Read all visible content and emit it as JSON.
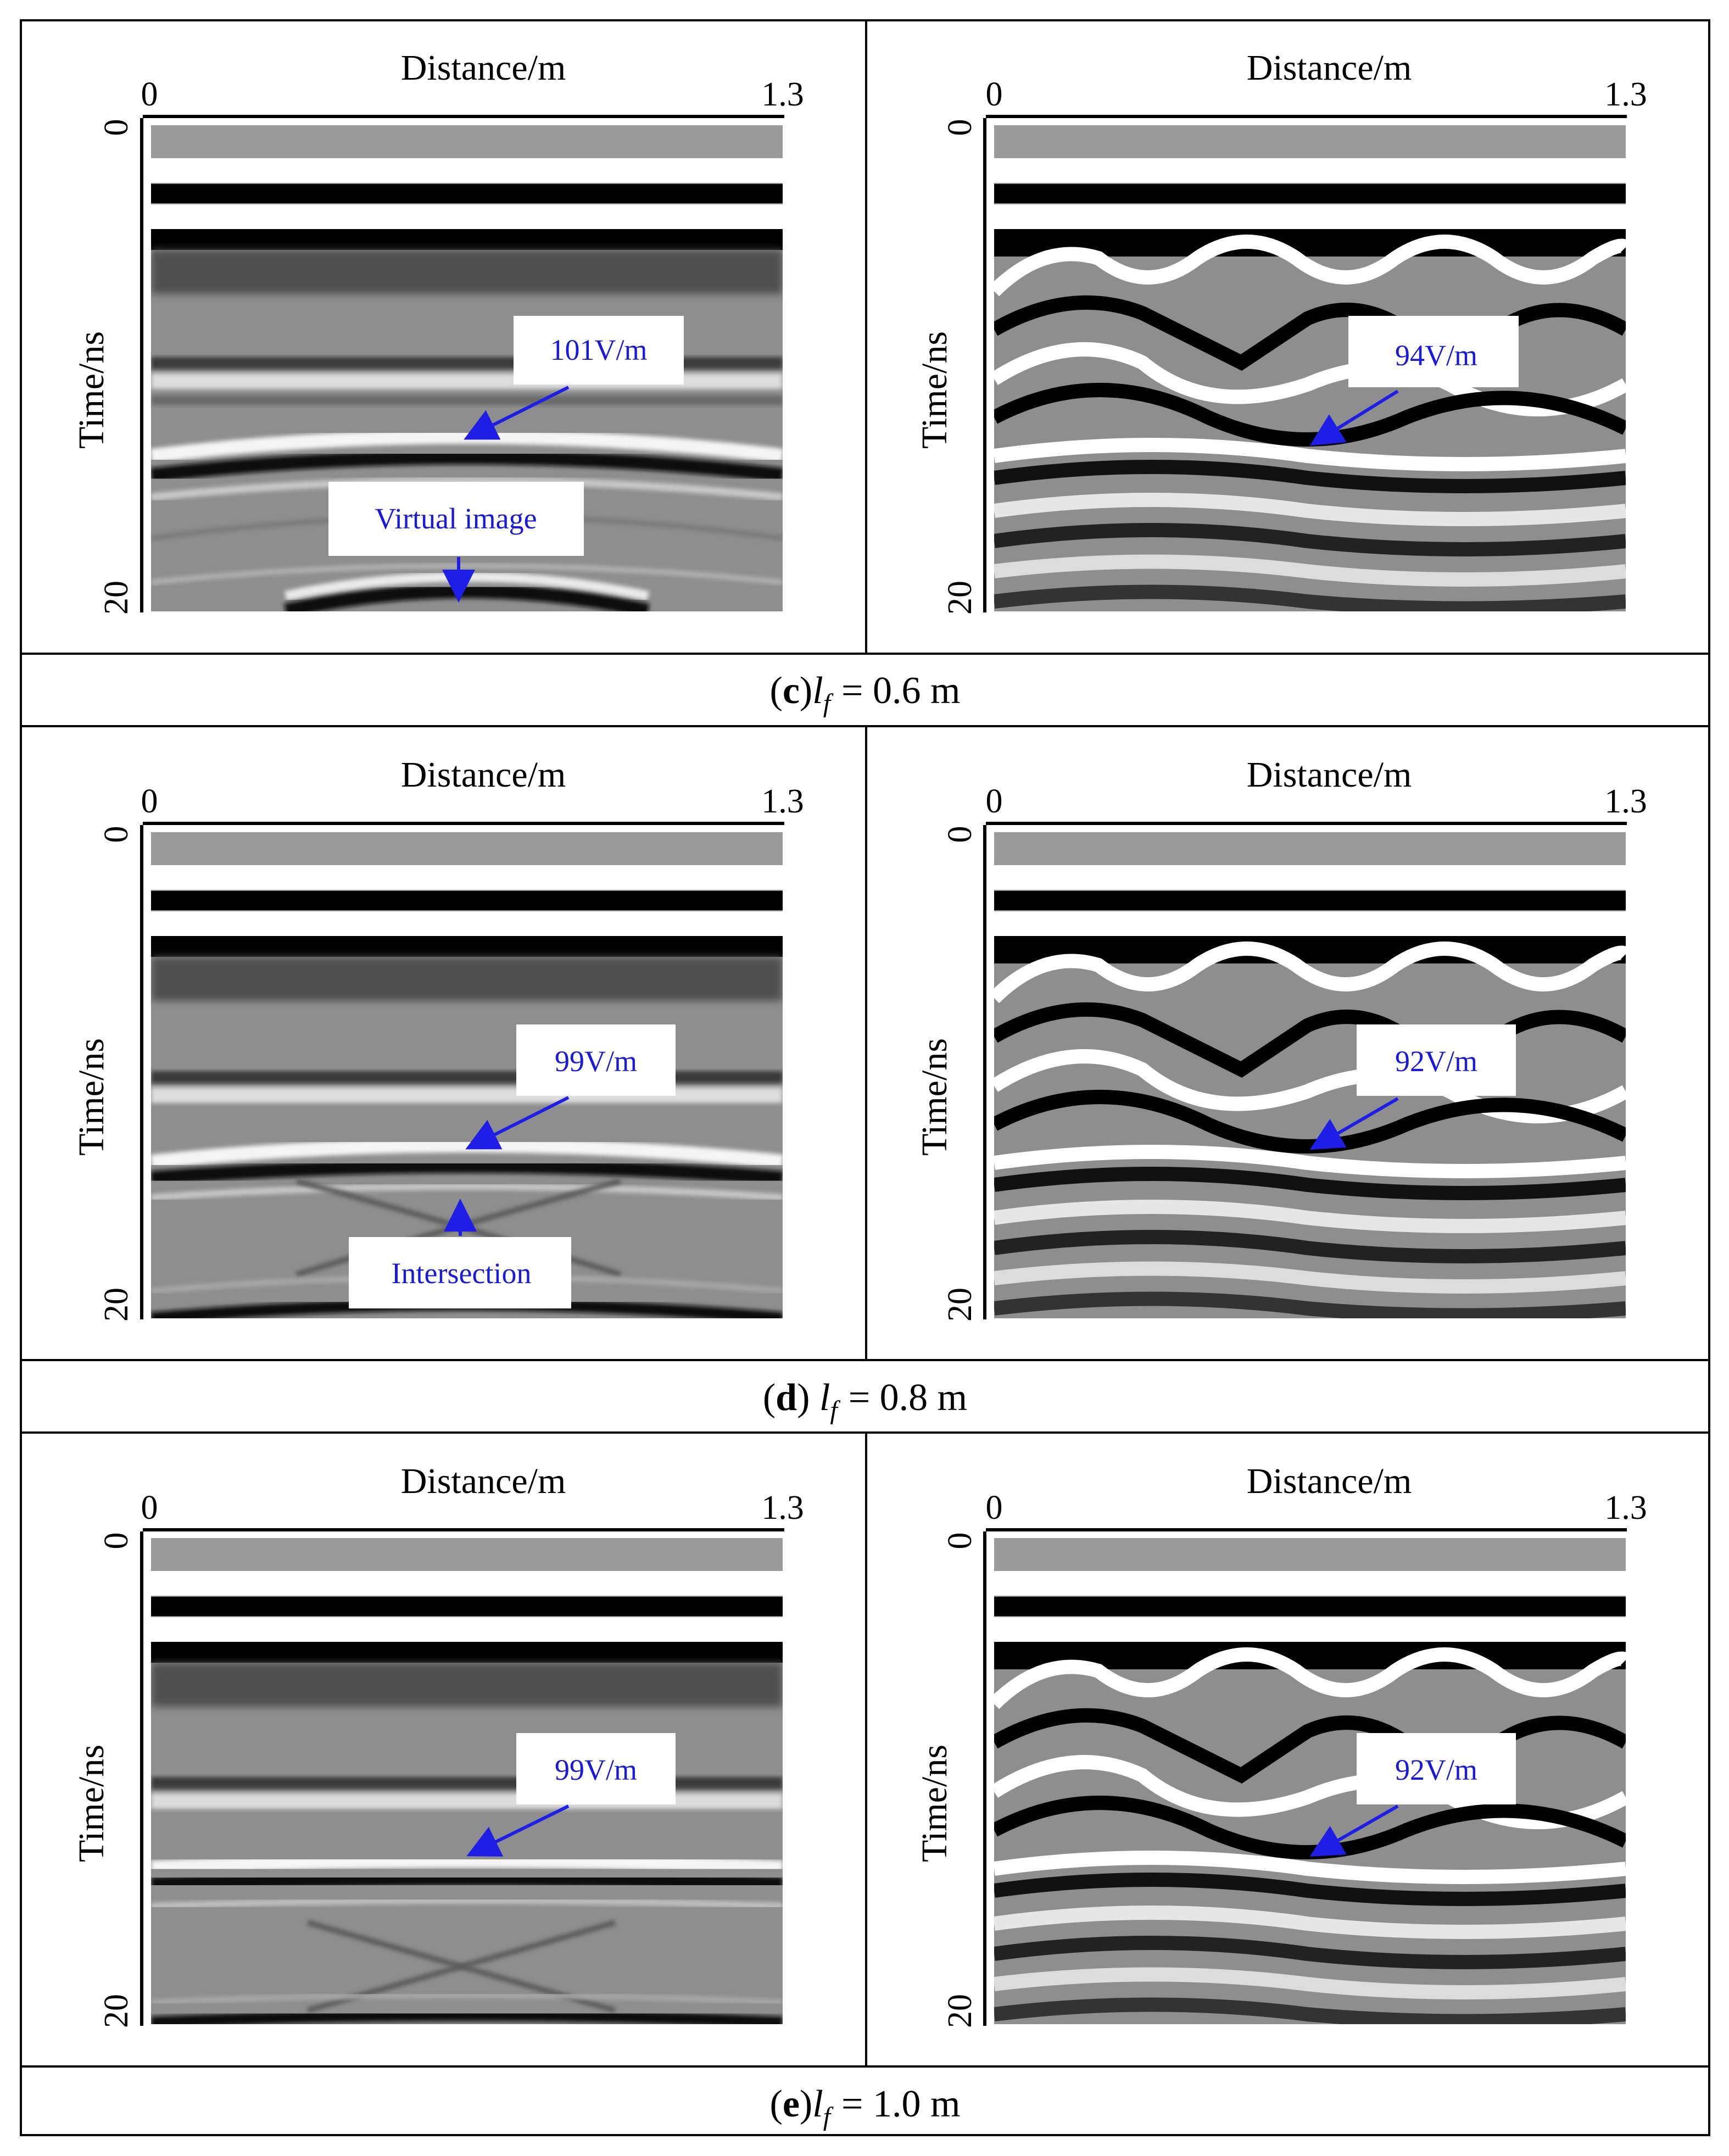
{
  "figure": {
    "rows": [
      {
        "caption": {
          "label": "c",
          "formula": "l",
          "subscript": "f",
          "equals": "= 0.6 m"
        },
        "panels": [
          {
            "x_axis_title": "Distance/m",
            "x_start": "0",
            "x_end": "1.3",
            "y_axis_title": "Time/ns",
            "y_start": "0",
            "y_end": "20",
            "style": "simple",
            "annotations": [
              {
                "text": "101V/m"
              },
              {
                "text": "Virtual image"
              }
            ]
          },
          {
            "x_axis_title": "Distance/m",
            "x_start": "0",
            "x_end": "1.3",
            "y_axis_title": "Time/ns",
            "y_start": "0",
            "y_end": "20",
            "style": "complex",
            "annotations": [
              {
                "text": "94V/m"
              }
            ]
          }
        ]
      },
      {
        "caption": {
          "label": "d",
          "formula": "l",
          "subscript": "f",
          "equals": "= 0.8 m"
        },
        "panels": [
          {
            "x_axis_title": "Distance/m",
            "x_start": "0",
            "x_end": "1.3",
            "y_axis_title": "Time/ns",
            "y_start": "0",
            "y_end": "20",
            "style": "simple",
            "annotations": [
              {
                "text": "99V/m"
              },
              {
                "text": "Intersection"
              }
            ]
          },
          {
            "x_axis_title": "Distance/m",
            "x_start": "0",
            "x_end": "1.3",
            "y_axis_title": "Time/ns",
            "y_start": "0",
            "y_end": "20",
            "style": "complex",
            "annotations": [
              {
                "text": "92V/m"
              }
            ]
          }
        ]
      },
      {
        "caption": {
          "label": "e",
          "formula": "l",
          "subscript": "f",
          "equals": "= 1.0 m"
        },
        "panels": [
          {
            "x_axis_title": "Distance/m",
            "x_start": "0",
            "x_end": "1.3",
            "y_axis_title": "Time/ns",
            "y_start": "0",
            "y_end": "20",
            "style": "simple",
            "annotations": [
              {
                "text": "99V/m"
              }
            ]
          },
          {
            "x_axis_title": "Distance/m",
            "x_start": "0",
            "x_end": "1.3",
            "y_axis_title": "Time/ns",
            "y_start": "0",
            "y_end": "20",
            "style": "complex",
            "annotations": [
              {
                "text": "92V/m"
              }
            ]
          }
        ]
      }
    ],
    "colors": {
      "annotation_text": "#1a1adc",
      "arrow": "#1e1ee6",
      "border": "#000000"
    }
  }
}
